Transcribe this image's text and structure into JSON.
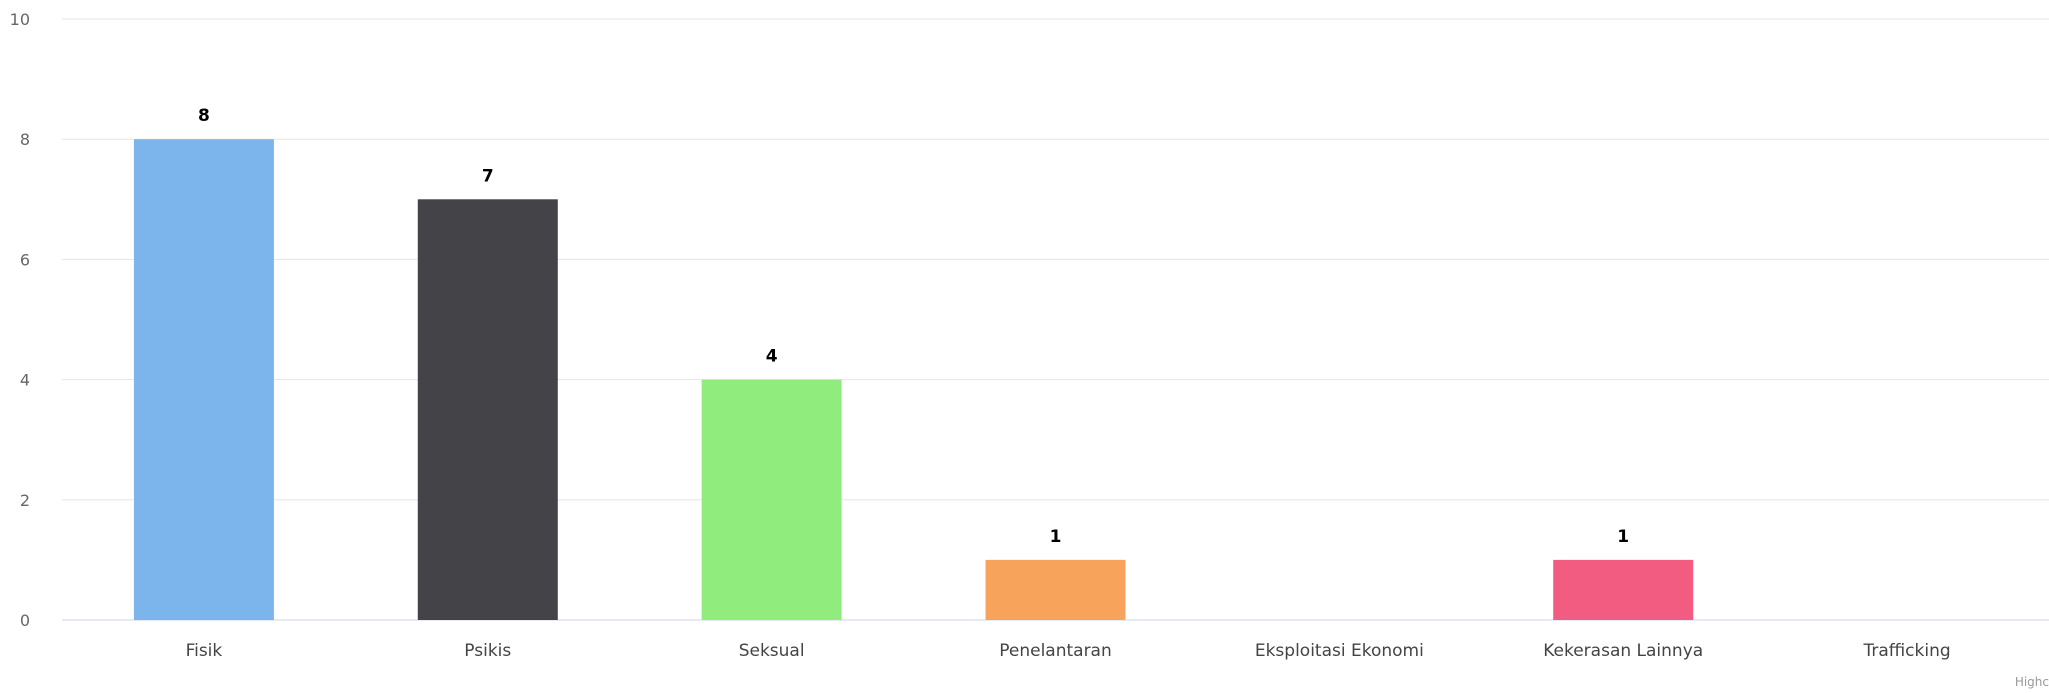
{
  "chart_data": {
    "type": "bar",
    "categories": [
      "Fisik",
      "Psikis",
      "Seksual",
      "Penelantaran",
      "Eksploitasi Ekonomi",
      "Kekerasan Lainnya",
      "Trafficking"
    ],
    "values": [
      8,
      7,
      4,
      1,
      0,
      1,
      0
    ],
    "data_labels": [
      "8",
      "7",
      "4",
      "1",
      "",
      "1",
      ""
    ],
    "colors": [
      "#7cb5ec",
      "#434348",
      "#90ed7d",
      "#f7a35c",
      "#8085e9",
      "#f15c80",
      "#e4d354"
    ],
    "ylim": [
      0,
      10
    ],
    "yticks": [
      0,
      2,
      4,
      6,
      8,
      10
    ],
    "title": "",
    "xlabel": "",
    "ylabel": "",
    "grid": true,
    "legend": "none"
  },
  "credits": "Highc"
}
